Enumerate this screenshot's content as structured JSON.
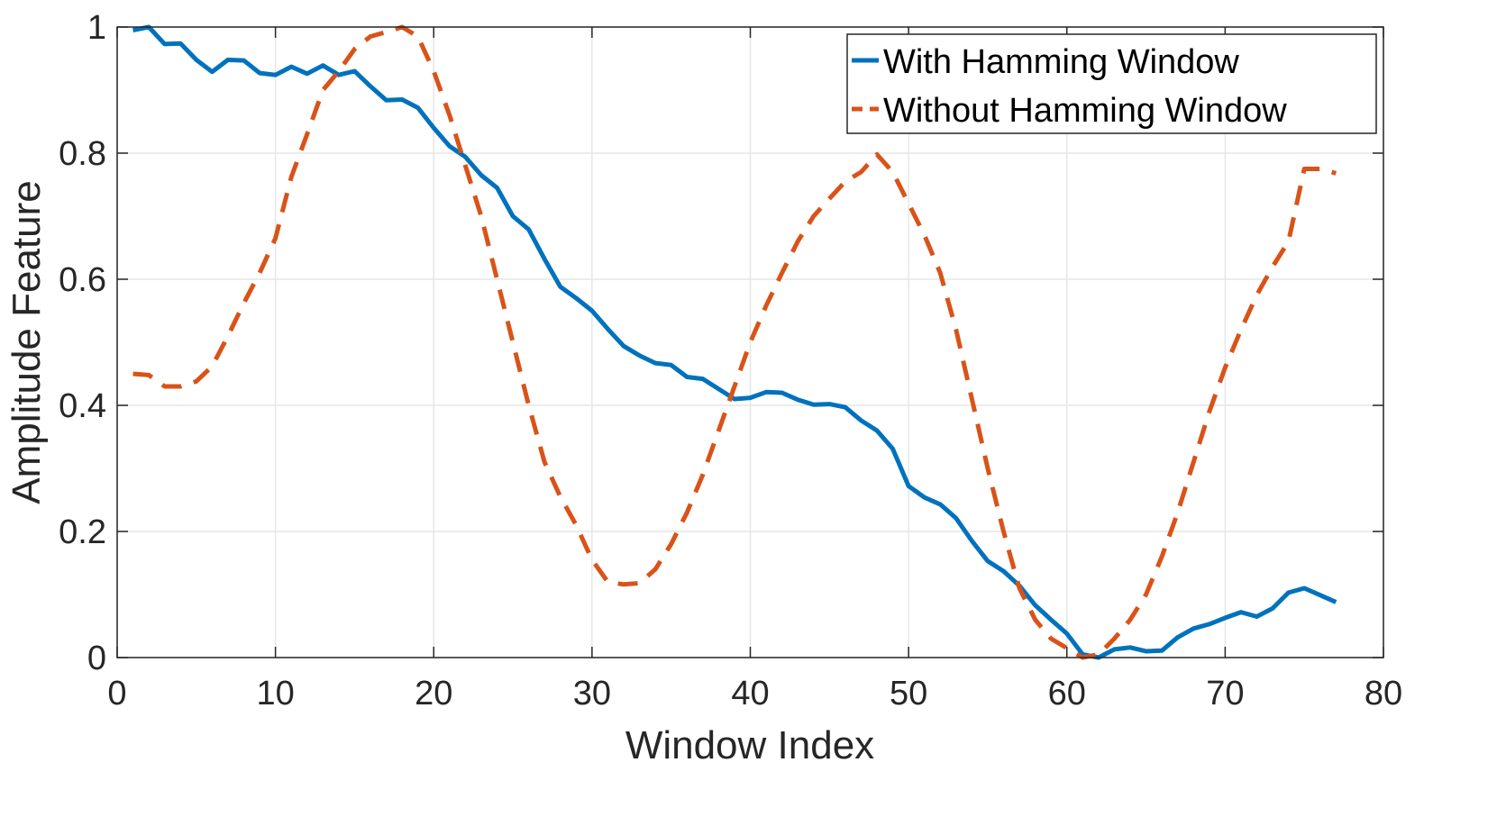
{
  "chart_data": {
    "type": "line",
    "xlabel": "Window Index",
    "ylabel": "Amplitude Feature",
    "xlim": [
      0,
      80
    ],
    "ylim": [
      0,
      1
    ],
    "xticks": [
      0,
      10,
      20,
      30,
      40,
      50,
      60,
      70,
      80
    ],
    "yticks": [
      0,
      0.2,
      0.4,
      0.6,
      0.8,
      1
    ],
    "xtick_labels": [
      "0",
      "10",
      "20",
      "30",
      "40",
      "50",
      "60",
      "70",
      "80"
    ],
    "ytick_labels": [
      "0",
      "0.2",
      "0.4",
      "0.6",
      "0.8",
      "1"
    ],
    "grid": true,
    "legend_position": "top-right",
    "x": [
      1,
      2,
      3,
      4,
      5,
      6,
      7,
      8,
      9,
      10,
      11,
      12,
      13,
      14,
      15,
      16,
      17,
      18,
      19,
      20,
      21,
      22,
      23,
      24,
      25,
      26,
      27,
      28,
      29,
      30,
      31,
      32,
      33,
      34,
      35,
      36,
      37,
      38,
      39,
      40,
      41,
      42,
      43,
      44,
      45,
      46,
      47,
      48,
      49,
      50,
      51,
      52,
      53,
      54,
      55,
      56,
      57,
      58,
      59,
      60,
      61,
      62,
      63,
      64,
      65,
      66,
      67,
      68,
      69,
      70,
      71,
      72,
      73,
      74,
      75,
      76,
      77
    ],
    "series": [
      {
        "name": "With Hamming Window",
        "color": "#0072bd",
        "style": "solid",
        "values": [
          0.995,
          1.0,
          0.973,
          0.974,
          0.948,
          0.929,
          0.948,
          0.947,
          0.927,
          0.924,
          0.937,
          0.926,
          0.939,
          0.924,
          0.93,
          0.906,
          0.884,
          0.885,
          0.872,
          0.84,
          0.811,
          0.794,
          0.765,
          0.745,
          0.7,
          0.679,
          0.632,
          0.588,
          0.57,
          0.55,
          0.521,
          0.494,
          0.479,
          0.467,
          0.464,
          0.445,
          0.442,
          0.426,
          0.41,
          0.412,
          0.421,
          0.42,
          0.409,
          0.401,
          0.402,
          0.397,
          0.376,
          0.36,
          0.331,
          0.272,
          0.254,
          0.243,
          0.221,
          0.185,
          0.153,
          0.137,
          0.114,
          0.083,
          0.06,
          0.038,
          0.005,
          0.0,
          0.013,
          0.016,
          0.01,
          0.011,
          0.032,
          0.046,
          0.053,
          0.063,
          0.072,
          0.065,
          0.078,
          0.103,
          0.11,
          0.099,
          0.088
        ]
      },
      {
        "name": "Without Hamming Window",
        "color": "#d95319",
        "style": "dashed",
        "values": [
          0.45,
          0.448,
          0.43,
          0.43,
          0.438,
          0.462,
          0.51,
          0.562,
          0.61,
          0.665,
          0.762,
          0.83,
          0.9,
          0.93,
          0.965,
          0.985,
          0.992,
          1.0,
          0.985,
          0.93,
          0.86,
          0.78,
          0.7,
          0.6,
          0.5,
          0.4,
          0.31,
          0.255,
          0.21,
          0.155,
          0.12,
          0.116,
          0.118,
          0.14,
          0.18,
          0.23,
          0.29,
          0.36,
          0.43,
          0.5,
          0.558,
          0.61,
          0.66,
          0.7,
          0.728,
          0.755,
          0.77,
          0.798,
          0.77,
          0.72,
          0.67,
          0.61,
          0.52,
          0.41,
          0.3,
          0.2,
          0.11,
          0.06,
          0.03,
          0.015,
          0.0,
          0.005,
          0.03,
          0.06,
          0.1,
          0.16,
          0.23,
          0.31,
          0.39,
          0.46,
          0.52,
          0.575,
          0.62,
          0.66,
          0.775,
          0.775,
          0.768
        ]
      }
    ]
  }
}
